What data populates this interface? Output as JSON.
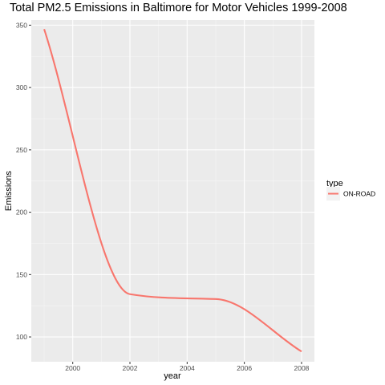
{
  "chart_data": {
    "type": "line",
    "title": "Total PM2.5 Emissions in Baltimore for Motor Vehicles 1999-2008",
    "xlabel": "year",
    "ylabel": "Emissions",
    "x_ticks": [
      2000,
      2002,
      2004,
      2006,
      2008
    ],
    "y_ticks": [
      100,
      150,
      200,
      250,
      300,
      350
    ],
    "xlim": [
      1998.55,
      2008.45
    ],
    "ylim": [
      80.1,
      354.1
    ],
    "grid": true,
    "smoothed": true,
    "legend": {
      "title": "type",
      "position": "right"
    },
    "series": [
      {
        "name": "ON-ROAD",
        "color": "#F8766D",
        "x": [
          1999,
          2002,
          2005,
          2008
        ],
        "y": [
          346.8,
          134.3,
          130.4,
          88.3
        ]
      }
    ]
  }
}
